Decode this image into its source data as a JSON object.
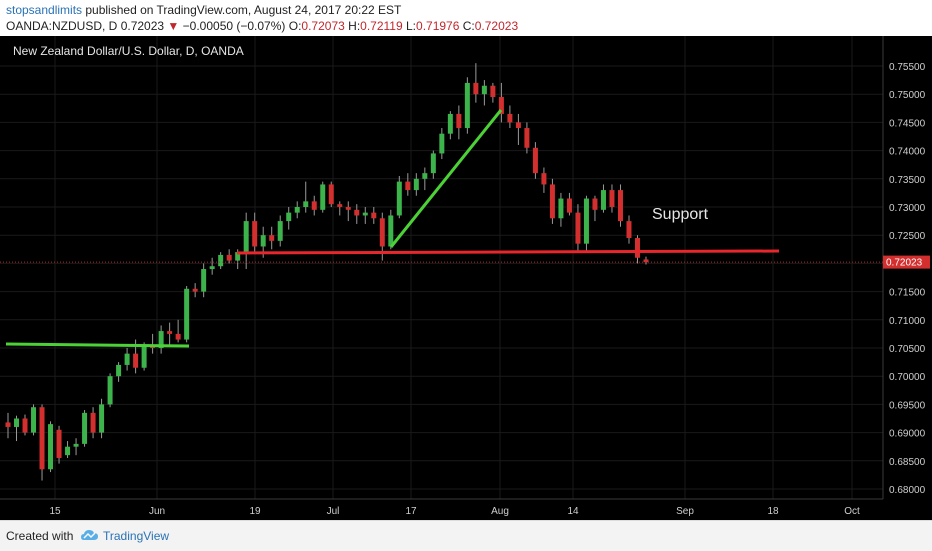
{
  "header": {
    "author": "stopsandlimits",
    "published_text": " published on TradingView.com, August 24, 2017 20:22 EST",
    "symbol": "OANDA:NZDUSD, D",
    "last": "0.72023",
    "change": "−0.00050 (−0.07%)",
    "o_label": "O:",
    "o": "0.72073",
    "h_label": "H:",
    "h": "0.72119",
    "l_label": "L:",
    "l": "0.71976",
    "c_label": "C:",
    "c": "0.72023"
  },
  "chart_data": {
    "type": "candlestick",
    "title": "New Zealand Dollar/U.S. Dollar, D, OANDA",
    "y_ticks": [
      "0.75500",
      "0.75000",
      "0.74500",
      "0.74000",
      "0.73500",
      "0.73000",
      "0.72500",
      "0.72000",
      "0.71500",
      "0.71000",
      "0.70500",
      "0.70000",
      "0.69500",
      "0.69000",
      "0.68500",
      "0.68000"
    ],
    "ylim": [
      0.6775,
      0.7575
    ],
    "x_ticks": [
      "15",
      "Jun",
      "19",
      "Jul",
      "17",
      "Aug",
      "14",
      "Sep",
      "18",
      "Oct"
    ],
    "last_price_label": "0.72023",
    "annotation_support": "Support",
    "colors": {
      "up": "#3cb44b",
      "down": "#d32f2f",
      "trendline": "#4cd137",
      "support": "#e8262b",
      "background": "#000000",
      "grid": "#1a1a1a"
    },
    "candles": [
      [
        0.6918,
        0.6935,
        0.689,
        0.691
      ],
      [
        0.691,
        0.693,
        0.6885,
        0.6925
      ],
      [
        0.6925,
        0.6932,
        0.6895,
        0.69
      ],
      [
        0.69,
        0.695,
        0.6895,
        0.6945
      ],
      [
        0.6945,
        0.695,
        0.6815,
        0.6835
      ],
      [
        0.6835,
        0.692,
        0.683,
        0.6915
      ],
      [
        0.6905,
        0.6912,
        0.6845,
        0.6855
      ],
      [
        0.686,
        0.6885,
        0.6855,
        0.6875
      ],
      [
        0.6875,
        0.689,
        0.686,
        0.688
      ],
      [
        0.688,
        0.694,
        0.6875,
        0.6935
      ],
      [
        0.6935,
        0.6945,
        0.689,
        0.69
      ],
      [
        0.69,
        0.696,
        0.689,
        0.695
      ],
      [
        0.695,
        0.7005,
        0.6945,
        0.7
      ],
      [
        0.7,
        0.7025,
        0.699,
        0.702
      ],
      [
        0.702,
        0.705,
        0.701,
        0.704
      ],
      [
        0.704,
        0.7065,
        0.7005,
        0.7015
      ],
      [
        0.7015,
        0.706,
        0.701,
        0.7055
      ],
      [
        0.7055,
        0.7075,
        0.704,
        0.705
      ],
      [
        0.705,
        0.709,
        0.704,
        0.708
      ],
      [
        0.708,
        0.7095,
        0.7055,
        0.7075
      ],
      [
        0.7075,
        0.71,
        0.706,
        0.7065
      ],
      [
        0.7065,
        0.716,
        0.706,
        0.7155
      ],
      [
        0.7155,
        0.7165,
        0.714,
        0.715
      ],
      [
        0.715,
        0.72,
        0.714,
        0.719
      ],
      [
        0.719,
        0.721,
        0.718,
        0.7195
      ],
      [
        0.7195,
        0.722,
        0.719,
        0.7215
      ],
      [
        0.7215,
        0.7225,
        0.72,
        0.7205
      ],
      [
        0.7205,
        0.7225,
        0.719,
        0.722
      ],
      [
        0.722,
        0.729,
        0.719,
        0.7275
      ],
      [
        0.7275,
        0.729,
        0.722,
        0.723
      ],
      [
        0.723,
        0.7265,
        0.721,
        0.725
      ],
      [
        0.725,
        0.7265,
        0.7225,
        0.724
      ],
      [
        0.724,
        0.7285,
        0.723,
        0.7275
      ],
      [
        0.7275,
        0.73,
        0.726,
        0.729
      ],
      [
        0.729,
        0.731,
        0.728,
        0.73
      ],
      [
        0.73,
        0.7345,
        0.729,
        0.731
      ],
      [
        0.731,
        0.732,
        0.7285,
        0.7295
      ],
      [
        0.7295,
        0.7345,
        0.729,
        0.734
      ],
      [
        0.734,
        0.7345,
        0.73,
        0.7305
      ],
      [
        0.7305,
        0.731,
        0.7285,
        0.73
      ],
      [
        0.73,
        0.731,
        0.7275,
        0.7295
      ],
      [
        0.7295,
        0.7305,
        0.727,
        0.7285
      ],
      [
        0.7285,
        0.73,
        0.727,
        0.729
      ],
      [
        0.729,
        0.73,
        0.727,
        0.728
      ],
      [
        0.728,
        0.729,
        0.7205,
        0.723
      ],
      [
        0.723,
        0.7295,
        0.7225,
        0.7285
      ],
      [
        0.7285,
        0.7355,
        0.728,
        0.7345
      ],
      [
        0.7345,
        0.736,
        0.732,
        0.733
      ],
      [
        0.733,
        0.736,
        0.732,
        0.735
      ],
      [
        0.735,
        0.737,
        0.733,
        0.736
      ],
      [
        0.736,
        0.74,
        0.735,
        0.7395
      ],
      [
        0.7395,
        0.744,
        0.7385,
        0.743
      ],
      [
        0.743,
        0.747,
        0.742,
        0.7465
      ],
      [
        0.7465,
        0.748,
        0.742,
        0.744
      ],
      [
        0.744,
        0.753,
        0.743,
        0.752
      ],
      [
        0.752,
        0.7555,
        0.7485,
        0.75
      ],
      [
        0.75,
        0.7525,
        0.748,
        0.7515
      ],
      [
        0.7515,
        0.752,
        0.7485,
        0.7495
      ],
      [
        0.7495,
        0.752,
        0.745,
        0.7465
      ],
      [
        0.7465,
        0.748,
        0.744,
        0.745
      ],
      [
        0.745,
        0.7465,
        0.741,
        0.744
      ],
      [
        0.744,
        0.745,
        0.7395,
        0.7405
      ],
      [
        0.7405,
        0.7415,
        0.735,
        0.736
      ],
      [
        0.736,
        0.737,
        0.7325,
        0.734
      ],
      [
        0.734,
        0.735,
        0.727,
        0.728
      ],
      [
        0.728,
        0.7325,
        0.7265,
        0.7315
      ],
      [
        0.7315,
        0.7325,
        0.7285,
        0.729
      ],
      [
        0.729,
        0.7305,
        0.722,
        0.7235
      ],
      [
        0.7235,
        0.732,
        0.722,
        0.7315
      ],
      [
        0.7315,
        0.732,
        0.7275,
        0.7295
      ],
      [
        0.7295,
        0.734,
        0.729,
        0.733
      ],
      [
        0.733,
        0.734,
        0.729,
        0.73
      ],
      [
        0.733,
        0.734,
        0.7265,
        0.7275
      ],
      [
        0.7275,
        0.7285,
        0.7235,
        0.7245
      ],
      [
        0.7245,
        0.725,
        0.72,
        0.721
      ],
      [
        0.7207,
        0.7212,
        0.7198,
        0.7202
      ]
    ]
  },
  "footer": {
    "created_with": "Created with",
    "brand": "TradingView"
  }
}
